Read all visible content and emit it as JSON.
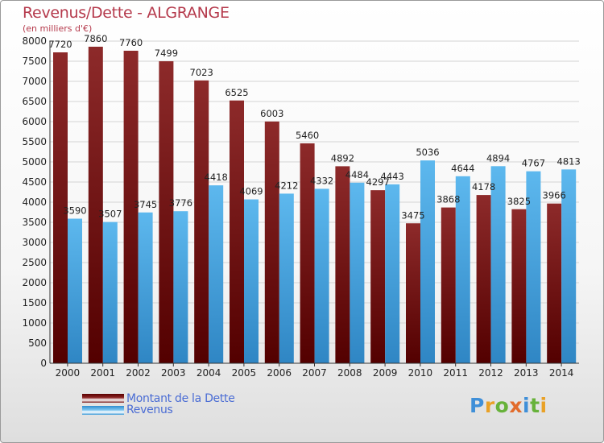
{
  "header": {
    "title": "Revenus/Dette - ALGRANGE",
    "subtitle": "(en milliers d'€)"
  },
  "colors": {
    "dette": "#7a1f1f",
    "revenus": "#4faee8",
    "title": "#b53a4c"
  },
  "chart_data": {
    "type": "bar",
    "title": "Revenus/Dette - ALGRANGE",
    "subtitle": "(en milliers d'€)",
    "xlabel": "",
    "ylabel": "",
    "ylim": [
      0,
      8000
    ],
    "y_ticks": [
      0,
      500,
      1000,
      1500,
      2000,
      2500,
      3000,
      3500,
      4000,
      4500,
      5000,
      5500,
      6000,
      6500,
      7000,
      7500,
      8000
    ],
    "grid": true,
    "legend_position": "bottom-left",
    "categories": [
      "2000",
      "2001",
      "2002",
      "2003",
      "2004",
      "2005",
      "2006",
      "2007",
      "2008",
      "2009",
      "2010",
      "2011",
      "2012",
      "2013",
      "2014"
    ],
    "series": [
      {
        "name": "Montant de la Dette",
        "color": "#7a1f1f",
        "values": [
          7720,
          7860,
          7760,
          7499,
          7023,
          6525,
          6003,
          5460,
          4892,
          4297,
          3475,
          3868,
          4178,
          3825,
          3966
        ]
      },
      {
        "name": "Revenus",
        "color": "#4faee8",
        "values": [
          3590,
          3507,
          3745,
          3776,
          4418,
          4069,
          4212,
          4332,
          4484,
          4443,
          5036,
          4644,
          4894,
          4767,
          4813
        ]
      }
    ]
  },
  "legend": {
    "dette_label": "Montant de la Dette",
    "revenus_label": "Revenus"
  },
  "logo": {
    "letters": [
      {
        "ch": "P",
        "color": "#3f8fd8"
      },
      {
        "ch": "r",
        "color": "#e9a126"
      },
      {
        "ch": "o",
        "color": "#67b23a"
      },
      {
        "ch": "x",
        "color": "#e26b2b"
      },
      {
        "ch": "i",
        "color": "#3f8fd8"
      },
      {
        "ch": "t",
        "color": "#67b23a"
      },
      {
        "ch": "i",
        "color": "#e9a126"
      }
    ]
  }
}
